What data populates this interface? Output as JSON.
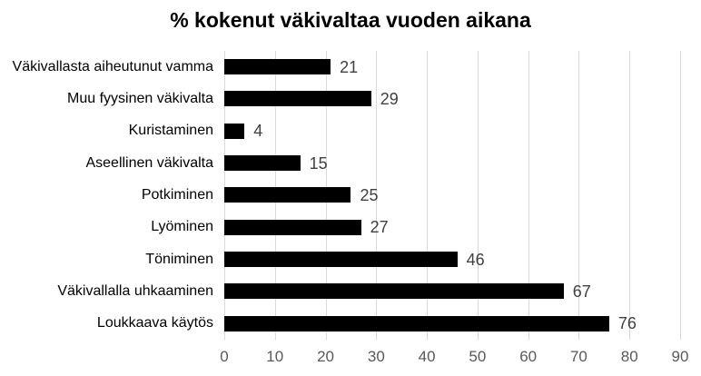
{
  "title": "% kokenut väkivaltaa vuoden aikana",
  "chart_data": {
    "type": "bar",
    "orientation": "horizontal",
    "title": "% kokenut väkivaltaa vuoden aikana",
    "categories": [
      "Väkivallasta aiheutunut vamma",
      "Muu fyysinen väkivalta",
      "Kuristaminen",
      "Aseellinen väkivalta",
      "Potkiminen",
      "Lyöminen",
      "Töniminen",
      "Väkivallalla uhkaaminen",
      "Loukkaava käytös"
    ],
    "values": [
      21,
      29,
      4,
      15,
      25,
      27,
      46,
      67,
      76
    ],
    "data_labels": [
      21,
      29,
      4,
      15,
      25,
      27,
      46,
      67,
      76
    ],
    "xlabel": "",
    "ylabel": "",
    "xlim": [
      0,
      90
    ],
    "xticks": [
      0,
      10,
      20,
      30,
      40,
      50,
      60,
      70,
      80,
      90
    ],
    "grid": "vertical-gridlines-on",
    "legend": "none",
    "colors": {
      "bar": "#000000",
      "gridline": "#d9d9d9",
      "value_label": "#404040",
      "axis_label": "#595959",
      "category_label": "#000000",
      "title": "#000000",
      "background": "#ffffff"
    }
  }
}
